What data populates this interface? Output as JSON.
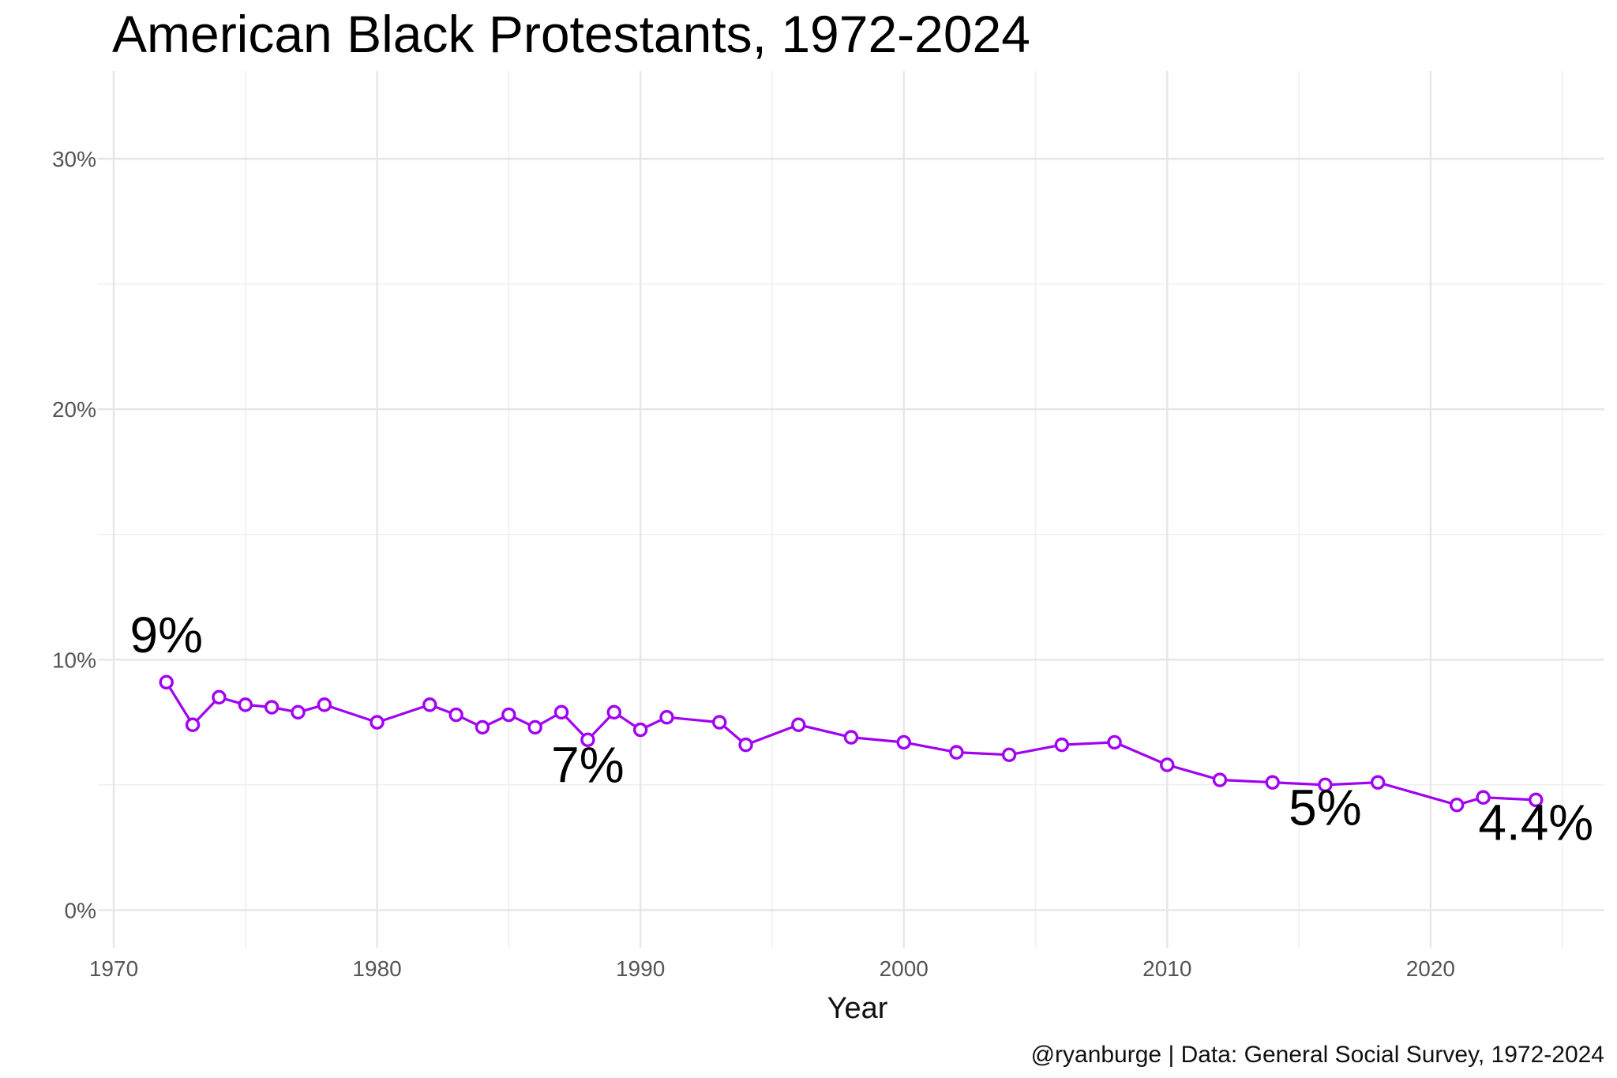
{
  "chart_data": {
    "type": "line",
    "title": "American Black Protestants, 1972-2024",
    "xlabel": "Year",
    "ylabel": "",
    "caption": "@ryanburge | Data: General Social Survey, 1972-2024",
    "xlim": [
      1969.4,
      2026.6
    ],
    "ylim": [
      -1.5,
      33.5
    ],
    "xticks": [
      1970,
      1980,
      1990,
      2000,
      2010,
      2020
    ],
    "xtick_labels": [
      "1970",
      "1980",
      "1990",
      "2000",
      "2010",
      "2020"
    ],
    "yticks": [
      0,
      10,
      20,
      30
    ],
    "ytick_labels": [
      "0%",
      "10%",
      "20%",
      "30%"
    ],
    "grid": true,
    "legend": "none",
    "line_color": "#a100f2",
    "series": [
      {
        "x": [
          1972,
          1973,
          1974,
          1975,
          1976,
          1977,
          1978,
          1980,
          1982,
          1983,
          1984,
          1985,
          1986,
          1987,
          1988,
          1989,
          1990,
          1991,
          1993,
          1994,
          1996,
          1998,
          2000,
          2002,
          2004,
          2006,
          2008,
          2010,
          2012,
          2014,
          2016,
          2018,
          2021,
          2022,
          2024
        ],
        "values": [
          9.1,
          7.4,
          8.5,
          8.2,
          8.1,
          7.9,
          8.2,
          7.5,
          8.2,
          7.8,
          7.3,
          7.8,
          7.3,
          7.9,
          6.8,
          7.9,
          7.2,
          7.7,
          7.5,
          6.6,
          7.4,
          6.9,
          6.7,
          6.3,
          6.2,
          6.6,
          6.7,
          5.8,
          5.2,
          5.1,
          5.0,
          5.1,
          4.2,
          4.5,
          4.4
        ]
      }
    ],
    "annotations": [
      {
        "text": "9%",
        "x": 1972,
        "y": 10.3
      },
      {
        "text": "7%",
        "x": 1988,
        "y": 5.1
      },
      {
        "text": "5%",
        "x": 2016,
        "y": 3.4
      },
      {
        "text": "4.4%",
        "x": 2024,
        "y": 2.8
      }
    ]
  }
}
